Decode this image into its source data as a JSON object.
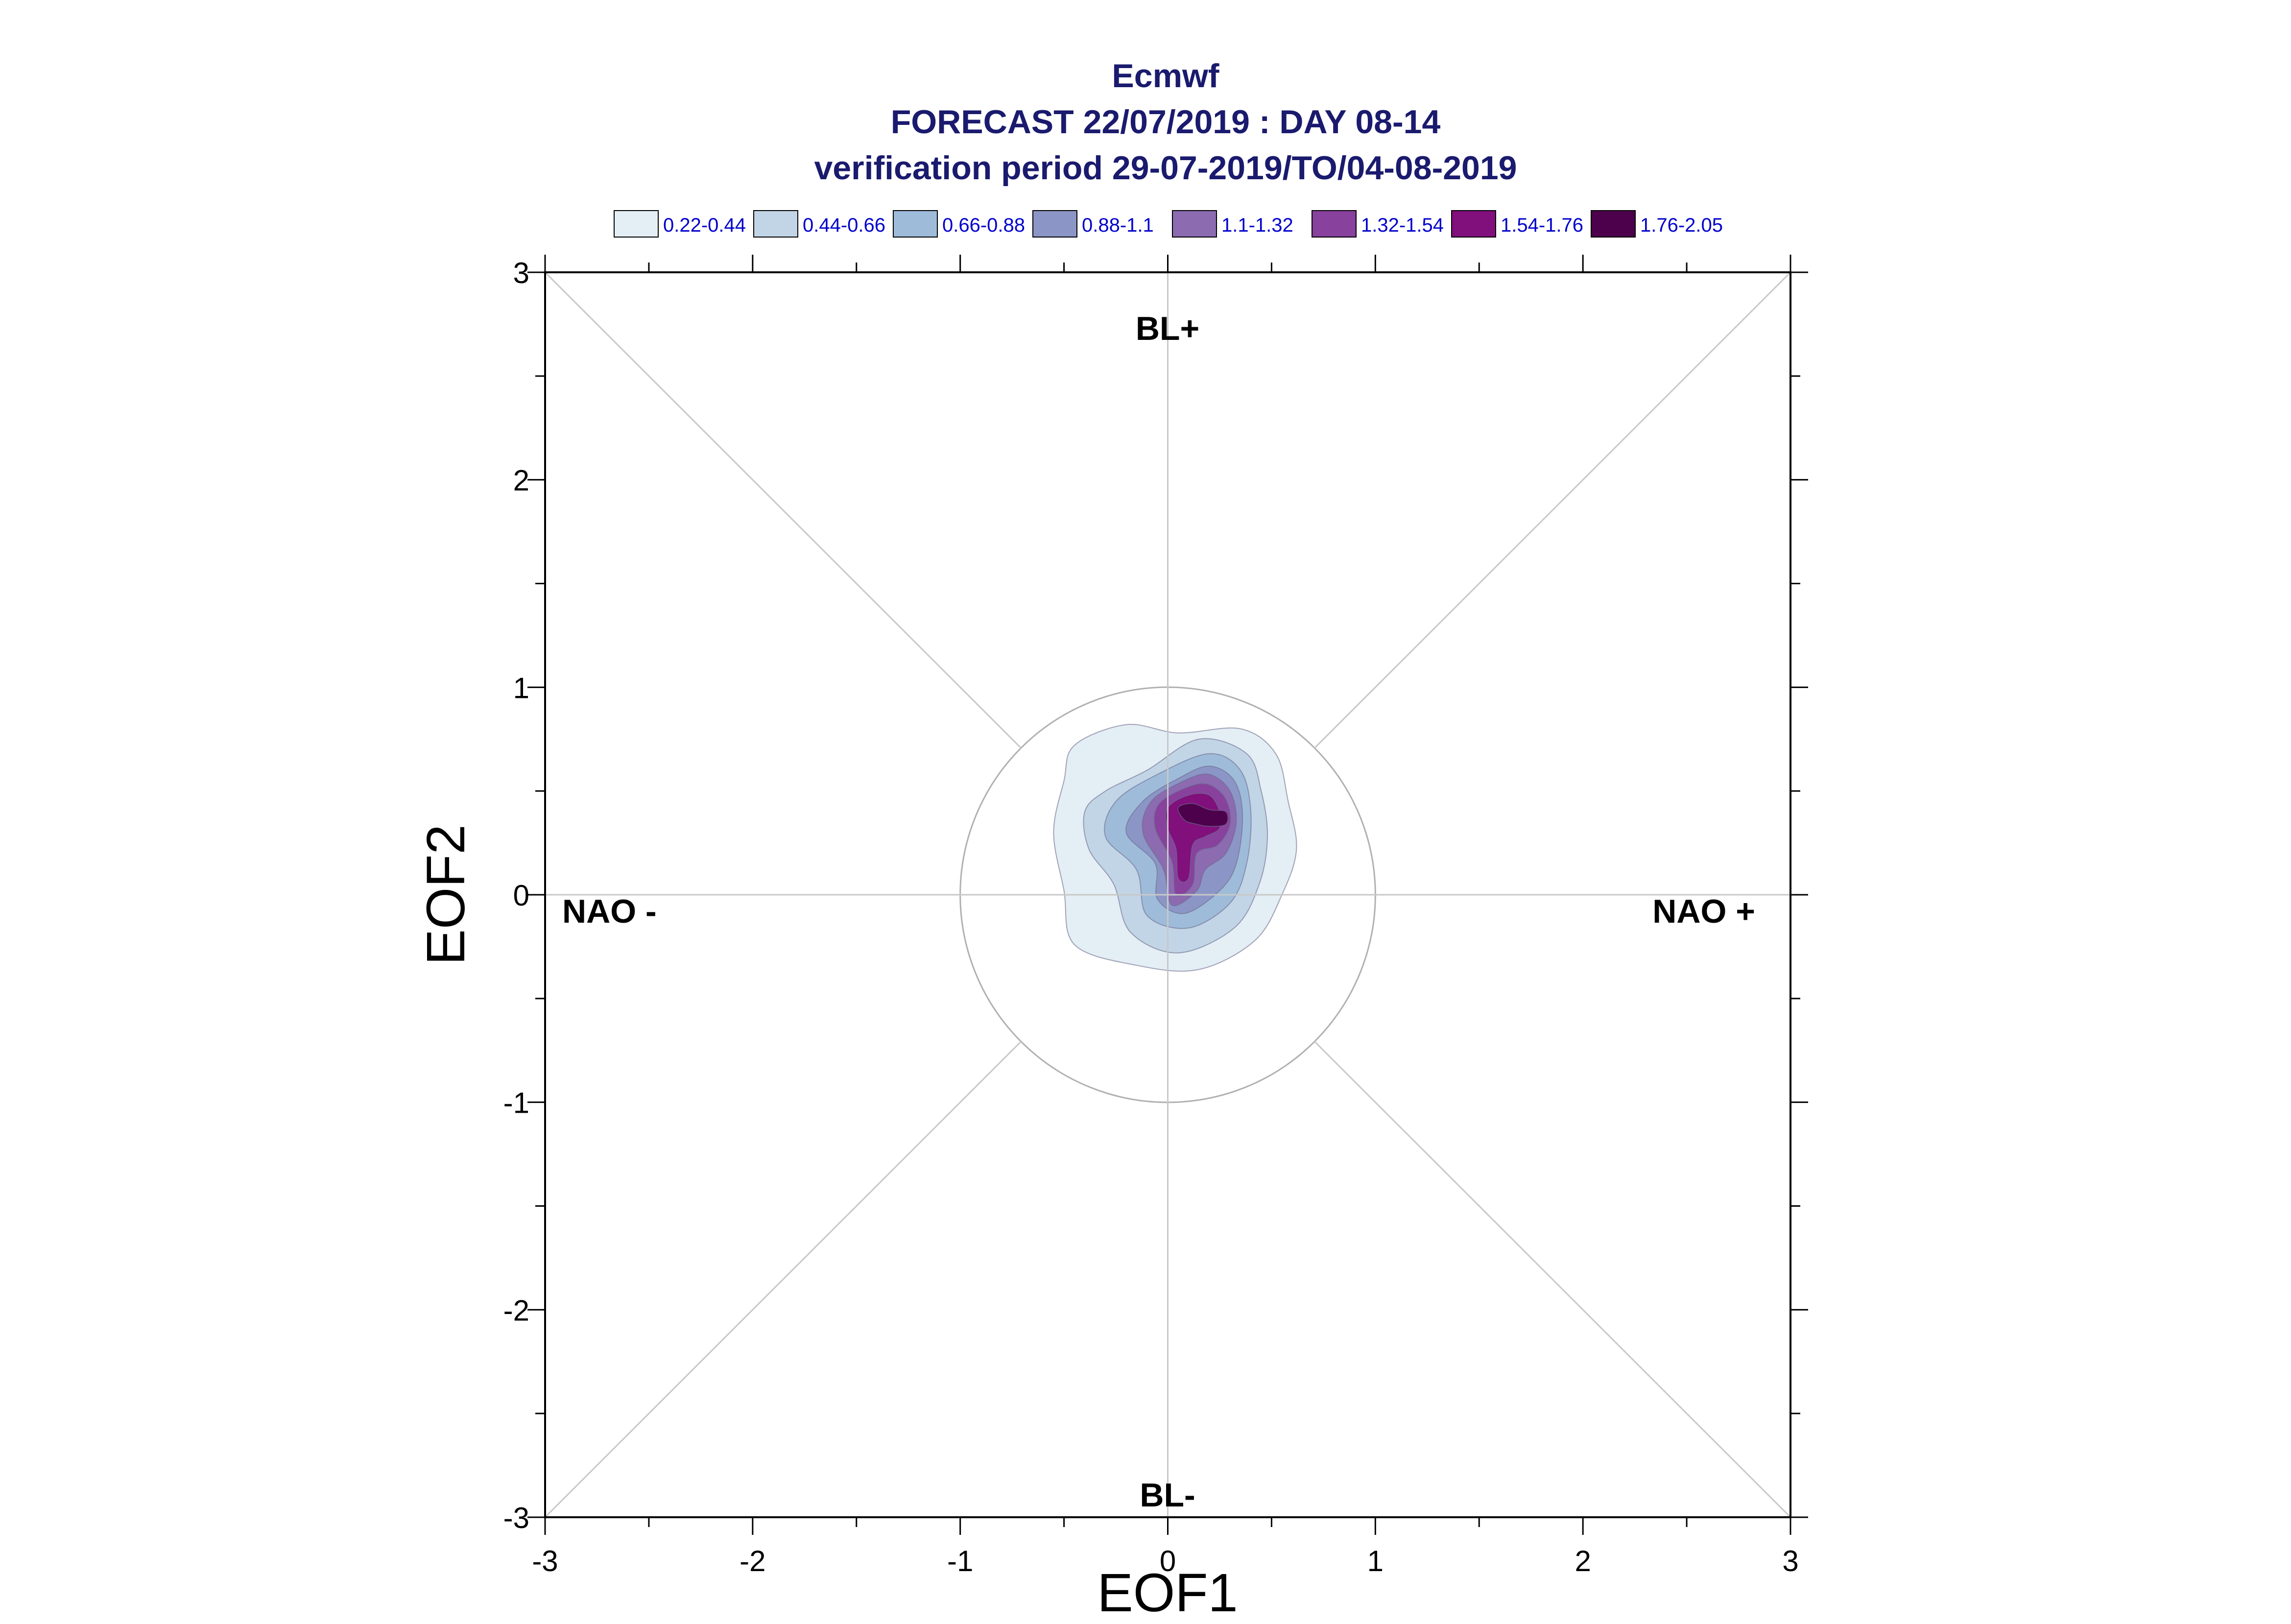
{
  "chart_data": {
    "type": "contour",
    "title": "Ecmwf",
    "subtitle_1": "FORECAST 22/07/2019 : DAY 08-14",
    "subtitle_2": "verification period 29-07-2019/TO/04-08-2019",
    "xlabel": "EOF1",
    "ylabel": "EOF2",
    "xlim": [
      -3,
      3
    ],
    "ylim": [
      -3,
      3
    ],
    "xticks": [
      "-3",
      "-2",
      "-1",
      "0",
      "1",
      "2",
      "3"
    ],
    "yticks": [
      "-3",
      "-2",
      "-1",
      "0",
      "1",
      "2",
      "3"
    ],
    "grid": false,
    "reference_circle_radius": 1,
    "regime_labels": {
      "top": "BL+",
      "bottom": "BL-",
      "left": "NAO -",
      "right": "NAO +"
    },
    "legend": {
      "placement": "top",
      "entries": [
        {
          "label": "0.22-0.44",
          "color": "#e4eef5"
        },
        {
          "label": "0.44-0.66",
          "color": "#c2d5e6"
        },
        {
          "label": "0.66-0.88",
          "color": "#9ebcda"
        },
        {
          "label": "0.88-1.1",
          "color": "#8c96c6"
        },
        {
          "label": "1.1-1.32",
          "color": "#8c6bb1"
        },
        {
          "label": "1.32-1.54",
          "color": "#88419d"
        },
        {
          "label": "1.54-1.76",
          "color": "#810f7c"
        },
        {
          "label": "1.76-2.05",
          "color": "#4d004b"
        }
      ]
    },
    "density_levels": [
      {
        "range": "0.22-0.44",
        "color": "#e4eef5",
        "polygon": [
          [
            -0.45,
            0.72
          ],
          [
            -0.2,
            0.82
          ],
          [
            0.05,
            0.78
          ],
          [
            0.35,
            0.8
          ],
          [
            0.52,
            0.68
          ],
          [
            0.58,
            0.45
          ],
          [
            0.62,
            0.22
          ],
          [
            0.55,
            0.0
          ],
          [
            0.42,
            -0.22
          ],
          [
            0.15,
            -0.36
          ],
          [
            -0.15,
            -0.34
          ],
          [
            -0.45,
            -0.24
          ],
          [
            -0.5,
            0.02
          ],
          [
            -0.55,
            0.3
          ],
          [
            -0.5,
            0.55
          ]
        ]
      },
      {
        "range": "0.44-0.66",
        "color": "#c2d5e6",
        "polygon": [
          [
            -0.3,
            0.5
          ],
          [
            -0.1,
            0.6
          ],
          [
            0.15,
            0.75
          ],
          [
            0.38,
            0.68
          ],
          [
            0.45,
            0.5
          ],
          [
            0.48,
            0.28
          ],
          [
            0.44,
            0.05
          ],
          [
            0.32,
            -0.16
          ],
          [
            0.05,
            -0.28
          ],
          [
            -0.18,
            -0.18
          ],
          [
            -0.26,
            0.05
          ],
          [
            -0.38,
            0.22
          ],
          [
            -0.4,
            0.4
          ]
        ]
      },
      {
        "range": "0.66-0.88",
        "color": "#9ebcda",
        "polygon": [
          [
            -0.25,
            0.45
          ],
          [
            -0.05,
            0.58
          ],
          [
            0.2,
            0.68
          ],
          [
            0.35,
            0.6
          ],
          [
            0.4,
            0.4
          ],
          [
            0.38,
            0.15
          ],
          [
            0.3,
            -0.04
          ],
          [
            0.1,
            -0.16
          ],
          [
            -0.1,
            -0.1
          ],
          [
            -0.15,
            0.12
          ],
          [
            -0.3,
            0.28
          ]
        ]
      },
      {
        "range": "0.88-1.1",
        "color": "#8c96c6",
        "polygon": [
          [
            -0.12,
            0.45
          ],
          [
            0.05,
            0.56
          ],
          [
            0.2,
            0.62
          ],
          [
            0.32,
            0.55
          ],
          [
            0.36,
            0.38
          ],
          [
            0.33,
            0.15
          ],
          [
            0.25,
            0.02
          ],
          [
            0.08,
            -0.09
          ],
          [
            -0.05,
            -0.02
          ],
          [
            -0.06,
            0.15
          ],
          [
            -0.2,
            0.3
          ]
        ]
      },
      {
        "range": "1.1-1.32",
        "color": "#8c6bb1",
        "polygon": [
          [
            -0.08,
            0.45
          ],
          [
            0.08,
            0.55
          ],
          [
            0.2,
            0.58
          ],
          [
            0.3,
            0.5
          ],
          [
            0.33,
            0.35
          ],
          [
            0.28,
            0.2
          ],
          [
            0.18,
            0.12
          ],
          [
            0.14,
            0.02
          ],
          [
            0.02,
            -0.05
          ],
          [
            -0.02,
            0.12
          ],
          [
            -0.12,
            0.3
          ]
        ]
      },
      {
        "range": "1.32-1.54",
        "color": "#88419d",
        "polygon": [
          [
            -0.04,
            0.44
          ],
          [
            0.1,
            0.52
          ],
          [
            0.2,
            0.53
          ],
          [
            0.28,
            0.46
          ],
          [
            0.3,
            0.34
          ],
          [
            0.24,
            0.24
          ],
          [
            0.14,
            0.2
          ],
          [
            0.12,
            0.05
          ],
          [
            0.04,
            0.0
          ],
          [
            0.02,
            0.16
          ],
          [
            -0.06,
            0.32
          ]
        ]
      },
      {
        "range": "1.54-1.76",
        "color": "#810f7c",
        "polygon": [
          [
            0.0,
            0.42
          ],
          [
            0.1,
            0.48
          ],
          [
            0.2,
            0.48
          ],
          [
            0.25,
            0.4
          ],
          [
            0.25,
            0.32
          ],
          [
            0.18,
            0.28
          ],
          [
            0.12,
            0.24
          ],
          [
            0.1,
            0.08
          ],
          [
            0.05,
            0.08
          ],
          [
            0.04,
            0.22
          ],
          [
            0.0,
            0.32
          ]
        ]
      },
      {
        "range": "1.76-2.05",
        "color": "#4d004b",
        "polygon": [
          [
            0.05,
            0.42
          ],
          [
            0.12,
            0.44
          ],
          [
            0.2,
            0.41
          ],
          [
            0.28,
            0.4
          ],
          [
            0.28,
            0.34
          ],
          [
            0.2,
            0.33
          ],
          [
            0.14,
            0.34
          ],
          [
            0.08,
            0.36
          ]
        ]
      }
    ]
  }
}
